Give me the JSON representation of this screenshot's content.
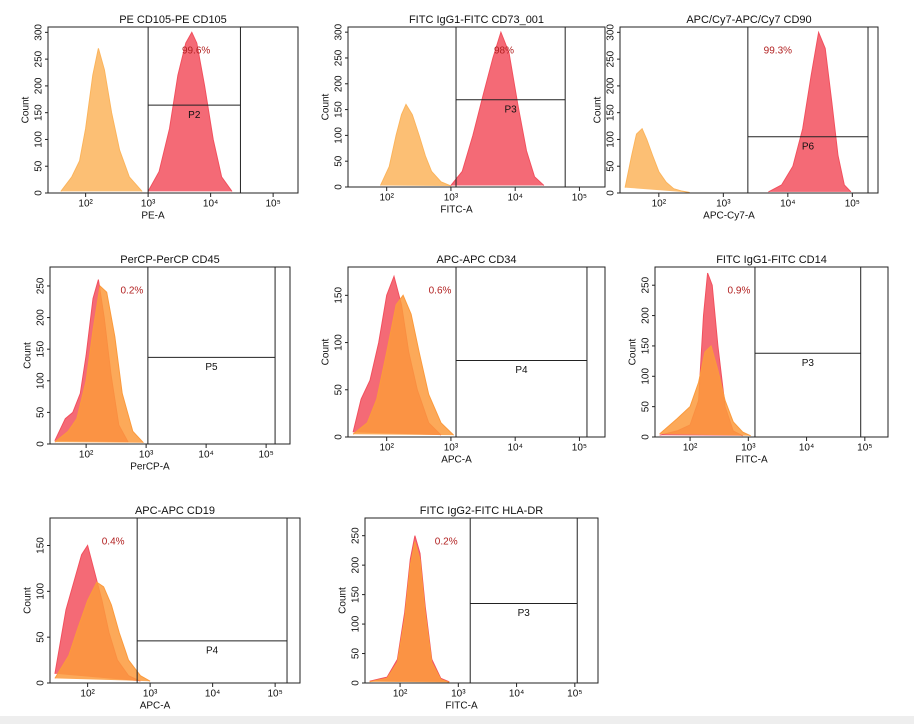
{
  "chart_data": [
    {
      "type": "area",
      "title": "PE CD105-PE CD105",
      "xlabel": "PE-A",
      "ylabel": "Count",
      "xlog": true,
      "xlim": [
        25,
        250000
      ],
      "xticks": [
        {
          "value": 100,
          "label": "10²"
        },
        {
          "value": 1000,
          "label": "10³"
        },
        {
          "value": 10000,
          "label": "10⁴"
        },
        {
          "value": 100000,
          "label": "10⁵"
        }
      ],
      "ylim": [
        0,
        310
      ],
      "yticks": [
        0,
        50,
        100,
        150,
        200,
        250,
        300
      ],
      "series": [
        {
          "color": "#fbb45c",
          "x": [
            40,
            60,
            80,
            100,
            130,
            160,
            200,
            260,
            350,
            500,
            800
          ],
          "values": [
            3,
            30,
            60,
            120,
            220,
            270,
            230,
            150,
            80,
            30,
            3
          ]
        },
        {
          "color": "#f2505e",
          "x": [
            1000,
            1500,
            2200,
            3000,
            4000,
            5000,
            6000,
            8000,
            11000,
            15000,
            22000
          ],
          "values": [
            3,
            40,
            120,
            220,
            280,
            300,
            280,
            200,
            100,
            30,
            3
          ]
        }
      ],
      "gate": {
        "name": "P2",
        "x": [
          1000,
          30000
        ],
        "y": 164
      },
      "percent": "99.6%"
    },
    {
      "type": "area",
      "title": "FITC IgG1-FITC CD73_001",
      "xlabel": "FITC-A",
      "ylabel": "Count",
      "xlog": true,
      "xlim": [
        25,
        250000
      ],
      "xticks": [
        {
          "value": 100,
          "label": "10²"
        },
        {
          "value": 1000,
          "label": "10³"
        },
        {
          "value": 10000,
          "label": "10⁴"
        },
        {
          "value": 100000,
          "label": "10⁵"
        }
      ],
      "ylim": [
        0,
        310
      ],
      "yticks": [
        0,
        50,
        100,
        150,
        200,
        250,
        300
      ],
      "series": [
        {
          "color": "#fbb45c",
          "x": [
            80,
            110,
            140,
            170,
            200,
            250,
            320,
            400,
            500,
            700,
            1000
          ],
          "values": [
            3,
            40,
            100,
            140,
            160,
            140,
            100,
            60,
            30,
            10,
            2
          ]
        },
        {
          "color": "#f2505e",
          "x": [
            1000,
            1500,
            2200,
            3200,
            4500,
            6000,
            8000,
            11000,
            15000,
            20000,
            28000
          ],
          "values": [
            3,
            30,
            100,
            180,
            250,
            300,
            260,
            160,
            70,
            20,
            3
          ]
        }
      ],
      "gate": {
        "name": "P3",
        "x": [
          1200,
          60000
        ],
        "y": 169
      },
      "percent": "98%"
    },
    {
      "type": "area",
      "title": "APC/Cy7-APC/Cy7 CD90",
      "xlabel": "APC-Cy7-A",
      "ylabel": "Count",
      "xlog": true,
      "xlim": [
        25,
        250000
      ],
      "xticks": [
        {
          "value": 100,
          "label": "10²"
        },
        {
          "value": 1000,
          "label": "10³"
        },
        {
          "value": 10000,
          "label": "10⁴"
        },
        {
          "value": 100000,
          "label": "10⁵"
        }
      ],
      "ylim": [
        0,
        310
      ],
      "yticks": [
        0,
        50,
        100,
        150,
        200,
        250,
        300
      ],
      "series": [
        {
          "color": "#fbb45c",
          "x": [
            30,
            38,
            45,
            55,
            65,
            80,
            100,
            130,
            170,
            220,
            300
          ],
          "values": [
            10,
            70,
            110,
            120,
            100,
            70,
            40,
            20,
            8,
            4,
            1
          ]
        },
        {
          "color": "#f2505e",
          "x": [
            5000,
            8000,
            12000,
            17000,
            23000,
            30000,
            38000,
            48000,
            60000,
            75000,
            95000
          ],
          "values": [
            2,
            15,
            50,
            120,
            220,
            300,
            270,
            170,
            70,
            15,
            2
          ]
        }
      ],
      "gate": {
        "name": "P6",
        "x": [
          2400,
          175000
        ],
        "y": 105
      },
      "percent": "99.3%"
    },
    {
      "type": "area",
      "title": "PerCP-PerCP CD45",
      "xlabel": "PerCP-A",
      "ylabel": "Count",
      "xlog": true,
      "xlim": [
        25,
        250000
      ],
      "xticks": [
        {
          "value": 100,
          "label": "10²"
        },
        {
          "value": 1000,
          "label": "10³"
        },
        {
          "value": 10000,
          "label": "10⁴"
        },
        {
          "value": 100000,
          "label": "10⁵"
        }
      ],
      "ylim": [
        0,
        280
      ],
      "yticks": [
        0,
        50,
        100,
        150,
        200,
        250
      ],
      "series": [
        {
          "color": "#f2505e",
          "x": [
            30,
            45,
            60,
            80,
            100,
            130,
            160,
            200,
            260,
            350,
            500
          ],
          "values": [
            5,
            40,
            50,
            80,
            140,
            230,
            260,
            200,
            110,
            30,
            3
          ]
        },
        {
          "color": "#fb9a3c",
          "x": [
            30,
            50,
            70,
            100,
            130,
            170,
            220,
            300,
            400,
            600,
            900
          ],
          "values": [
            3,
            20,
            40,
            100,
            180,
            250,
            240,
            170,
            80,
            20,
            2
          ]
        }
      ],
      "gate": {
        "name": "P5",
        "x": [
          1070,
          141000
        ],
        "y": 137
      },
      "percent": "0.2%"
    },
    {
      "type": "area",
      "title": "APC-APC CD34",
      "xlabel": "APC-A",
      "ylabel": "Count",
      "xlog": true,
      "xlim": [
        25,
        250000
      ],
      "xticks": [
        {
          "value": 100,
          "label": "10²"
        },
        {
          "value": 1000,
          "label": "10³"
        },
        {
          "value": 10000,
          "label": "10⁴"
        },
        {
          "value": 100000,
          "label": "10⁵"
        }
      ],
      "ylim": [
        0,
        180
      ],
      "yticks": [
        0,
        50,
        100,
        150
      ],
      "series": [
        {
          "color": "#f2505e",
          "x": [
            30,
            40,
            55,
            75,
            100,
            130,
            170,
            220,
            300,
            450,
            700
          ],
          "values": [
            5,
            40,
            60,
            100,
            150,
            170,
            140,
            90,
            50,
            15,
            2
          ]
        },
        {
          "color": "#fb9a3c",
          "x": [
            30,
            50,
            70,
            100,
            140,
            180,
            240,
            320,
            450,
            700,
            1100
          ],
          "values": [
            3,
            15,
            40,
            90,
            140,
            150,
            130,
            90,
            45,
            15,
            2
          ]
        }
      ],
      "gate": {
        "name": "P4",
        "x": [
          1200,
          131000
        ],
        "y": 81
      },
      "percent": "0.6%"
    },
    {
      "type": "area",
      "title": "FITC IgG1-FITC CD14",
      "xlabel": "FITC-A",
      "ylabel": "Count",
      "xlog": true,
      "xlim": [
        25,
        250000
      ],
      "xticks": [
        {
          "value": 100,
          "label": "10²"
        },
        {
          "value": 1000,
          "label": "10³"
        },
        {
          "value": 10000,
          "label": "10⁴"
        },
        {
          "value": 100000,
          "label": "10⁵"
        }
      ],
      "ylim": [
        0,
        280
      ],
      "yticks": [
        0,
        50,
        100,
        150,
        200,
        250
      ],
      "series": [
        {
          "color": "#f2505e",
          "x": [
            30,
            60,
            100,
            140,
            170,
            200,
            240,
            300,
            400,
            550,
            800
          ],
          "values": [
            3,
            10,
            20,
            60,
            200,
            270,
            250,
            150,
            50,
            10,
            2
          ]
        },
        {
          "color": "#fb9a3c",
          "x": [
            30,
            60,
            100,
            140,
            180,
            230,
            300,
            400,
            550,
            800,
            1100
          ],
          "values": [
            5,
            30,
            50,
            90,
            140,
            150,
            110,
            60,
            25,
            8,
            2
          ]
        }
      ],
      "gate": {
        "name": "P3",
        "x": [
          1300,
          85000
        ],
        "y": 138
      },
      "percent": "0.9%"
    },
    {
      "type": "area",
      "title": "APC-APC CD19",
      "xlabel": "APC-A",
      "ylabel": "Count",
      "xlog": true,
      "xlim": [
        25,
        250000
      ],
      "xticks": [
        {
          "value": 100,
          "label": "10²"
        },
        {
          "value": 1000,
          "label": "10³"
        },
        {
          "value": 10000,
          "label": "10⁴"
        },
        {
          "value": 100000,
          "label": "10⁵"
        }
      ],
      "ylim": [
        0,
        180
      ],
      "yticks": [
        0,
        50,
        100,
        150
      ],
      "series": [
        {
          "color": "#f2505e",
          "x": [
            30,
            45,
            60,
            80,
            100,
            130,
            170,
            220,
            300,
            450,
            700
          ],
          "values": [
            10,
            80,
            110,
            140,
            150,
            120,
            90,
            55,
            25,
            8,
            2
          ]
        },
        {
          "color": "#fb9a3c",
          "x": [
            30,
            50,
            70,
            100,
            140,
            180,
            240,
            320,
            450,
            700,
            1000
          ],
          "values": [
            5,
            30,
            60,
            90,
            110,
            105,
            85,
            55,
            25,
            8,
            2
          ]
        }
      ],
      "gate": {
        "name": "P4",
        "x": [
          620,
          155000
        ],
        "y": 46
      },
      "percent": "0.4%"
    },
    {
      "type": "area",
      "title": "FITC IgG2-FITC HLA-DR",
      "xlabel": "FITC-A",
      "ylabel": "Count",
      "xlog": true,
      "xlim": [
        25,
        250000
      ],
      "xticks": [
        {
          "value": 100,
          "label": "10²"
        },
        {
          "value": 1000,
          "label": "10³"
        },
        {
          "value": 10000,
          "label": "10⁴"
        },
        {
          "value": 100000,
          "label": "10⁵"
        }
      ],
      "ylim": [
        0,
        280
      ],
      "yticks": [
        0,
        50,
        100,
        150,
        200,
        250
      ],
      "series": [
        {
          "color": "#f2505e",
          "x": [
            30,
            60,
            90,
            120,
            150,
            180,
            220,
            270,
            350,
            500,
            700
          ],
          "values": [
            3,
            10,
            40,
            120,
            210,
            250,
            220,
            130,
            40,
            8,
            2
          ]
        },
        {
          "color": "#fb9a3c",
          "x": [
            30,
            60,
            90,
            120,
            150,
            180,
            220,
            270,
            350,
            500,
            700
          ],
          "values": [
            2,
            8,
            35,
            110,
            200,
            240,
            210,
            120,
            35,
            6,
            1
          ]
        }
      ],
      "gate": {
        "name": "P3",
        "x": [
          1600,
          110000
        ],
        "y": 135
      },
      "percent": "0.2%"
    }
  ]
}
